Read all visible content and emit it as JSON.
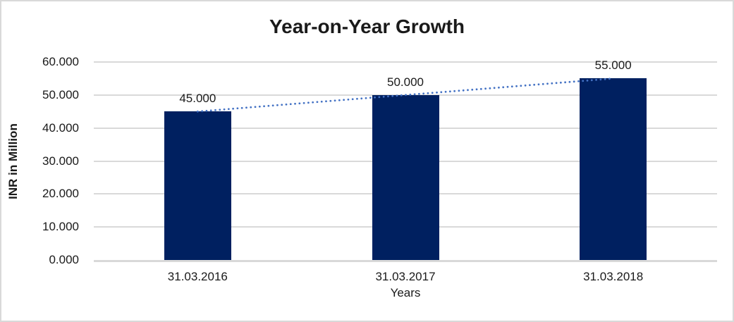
{
  "chart_data": {
    "type": "bar",
    "title": "Year-on-Year Growth",
    "xlabel": "Years",
    "ylabel": "INR in Million",
    "categories": [
      "31.03.2016",
      "31.03.2017",
      "31.03.2018"
    ],
    "values": [
      45000,
      50000,
      55000
    ],
    "value_labels": [
      "45.000",
      "50.000",
      "55.000"
    ],
    "ytick_values": [
      0,
      10000,
      20000,
      30000,
      40000,
      50000,
      60000
    ],
    "ytick_labels": [
      "0.000",
      "10.000",
      "20.000",
      "30.000",
      "40.000",
      "50.000",
      "60.000"
    ],
    "ylim": [
      0,
      60000
    ],
    "grid": "horizontal",
    "legend": "none",
    "trendline": {
      "type": "linear",
      "style": "dotted",
      "points": [
        45000,
        50000,
        55000
      ]
    },
    "colors": {
      "bar": "#002060",
      "trendline": "#4472C4",
      "gridline": "#d9d9d9",
      "axis_line": "#d9d9d9",
      "frame_border": "#d9d9d9",
      "text": "#1a1a1a",
      "background": "#ffffff"
    }
  }
}
